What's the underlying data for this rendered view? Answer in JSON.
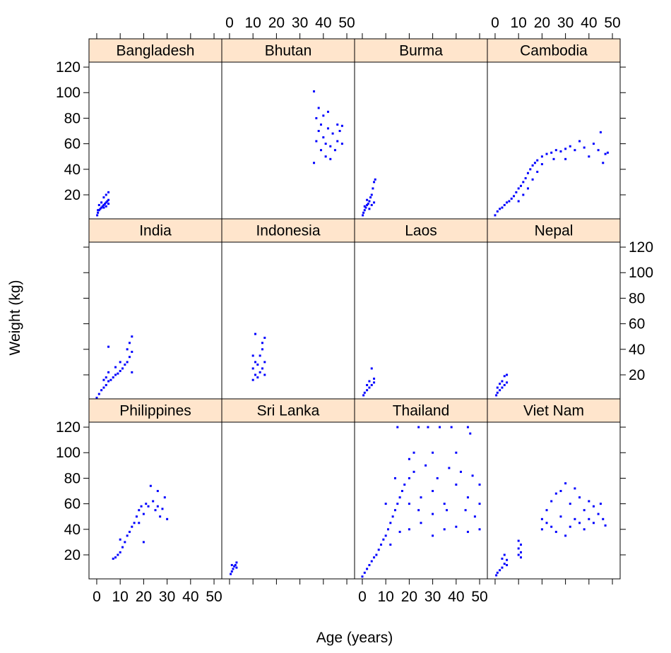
{
  "chart_data": {
    "type": "scatter",
    "xlabel": "Age (years)",
    "ylabel": "Weight (kg)",
    "color": "#0000ff",
    "xlim": [
      -3.3,
      53.3
    ],
    "ylim": [
      1.2,
      123.9
    ],
    "xticks": [
      0,
      10,
      20,
      30,
      40,
      50
    ],
    "yticks": [
      20,
      40,
      60,
      80,
      100,
      120
    ],
    "panels": [
      {
        "name": "Bangladesh",
        "x": [
          0.2,
          0.5,
          1,
          1.5,
          2,
          2.5,
          3,
          3.5,
          4,
          4.5,
          5,
          1,
          2,
          3,
          4,
          5,
          4,
          5,
          0.5,
          3
        ],
        "y": [
          4,
          6,
          8,
          9,
          10,
          11,
          12,
          13,
          14,
          15,
          16,
          12,
          14,
          18,
          20,
          22,
          11,
          13,
          8,
          10
        ]
      },
      {
        "name": "Bhutan",
        "x": [
          36,
          36,
          37,
          37,
          38,
          38,
          39,
          39,
          40,
          40,
          41,
          41,
          42,
          42,
          43,
          43,
          44,
          45,
          46,
          46,
          47,
          48,
          48
        ],
        "y": [
          101,
          45,
          80,
          62,
          88,
          70,
          75,
          55,
          82,
          65,
          60,
          50,
          72,
          85,
          58,
          48,
          68,
          55,
          62,
          75,
          70,
          60,
          74
        ]
      },
      {
        "name": "Burma",
        "x": [
          0.2,
          0.5,
          1,
          1.5,
          2,
          2.5,
          3,
          3.5,
          4,
          4.5,
          5,
          5.5,
          4,
          5,
          3,
          2,
          1
        ],
        "y": [
          4,
          6,
          8,
          10,
          12,
          13,
          15,
          18,
          20,
          25,
          30,
          32,
          12,
          14,
          9,
          16,
          11
        ]
      },
      {
        "name": "Cambodia",
        "x": [
          0,
          1,
          2,
          3,
          4,
          5,
          6,
          7,
          8,
          9,
          10,
          11,
          12,
          13,
          14,
          15,
          16,
          17,
          18,
          20,
          22,
          24,
          26,
          28,
          30,
          32,
          34,
          36,
          38,
          40,
          42,
          44,
          45,
          46,
          47,
          48,
          10,
          12,
          14,
          16,
          18,
          20,
          25,
          30
        ],
        "y": [
          4,
          7,
          9,
          10,
          12,
          14,
          15,
          17,
          19,
          22,
          25,
          27,
          30,
          33,
          37,
          40,
          43,
          45,
          47,
          50,
          52,
          53,
          55,
          54,
          56,
          58,
          55,
          62,
          57,
          50,
          60,
          55,
          69,
          45,
          52,
          53,
          15,
          20,
          25,
          32,
          38,
          44,
          48,
          48
        ]
      },
      {
        "name": "India",
        "x": [
          0,
          1,
          2,
          3,
          4,
          5,
          5,
          5,
          4,
          3,
          6,
          7,
          8,
          9,
          10,
          11,
          12,
          13,
          14,
          15,
          15,
          14,
          13,
          10,
          8,
          15
        ],
        "y": [
          2,
          5,
          8,
          10,
          12,
          15,
          22,
          42,
          18,
          16,
          16,
          18,
          20,
          21,
          23,
          25,
          28,
          30,
          34,
          38,
          50,
          45,
          40,
          30,
          26,
          22
        ]
      },
      {
        "name": "Indonesia",
        "x": [
          10,
          10,
          10,
          11,
          11,
          11,
          12,
          12,
          13,
          13,
          14,
          14,
          15,
          15,
          15,
          14
        ],
        "y": [
          16,
          25,
          35,
          20,
          30,
          52,
          18,
          28,
          22,
          35,
          25,
          40,
          30,
          49,
          20,
          45
        ]
      },
      {
        "name": "Laos",
        "x": [
          0.5,
          1,
          2,
          3,
          4,
          5,
          4,
          3,
          5,
          2
        ],
        "y": [
          4,
          6,
          8,
          10,
          12,
          14,
          25,
          15,
          17,
          12
        ]
      },
      {
        "name": "Nepal",
        "x": [
          0.5,
          1,
          2,
          3,
          4,
          5,
          4,
          5,
          3,
          2,
          1
        ],
        "y": [
          4,
          6,
          8,
          10,
          12,
          14,
          19,
          20,
          15,
          13,
          10
        ]
      },
      {
        "name": "Philippines",
        "x": [
          7,
          8,
          9,
          10,
          11,
          12,
          13,
          14,
          15,
          16,
          17,
          18,
          19,
          20,
          21,
          22,
          23,
          24,
          25,
          26,
          27,
          28,
          29,
          30,
          20,
          10,
          18,
          26
        ],
        "y": [
          17,
          18,
          20,
          22,
          26,
          30,
          35,
          38,
          42,
          45,
          50,
          55,
          58,
          52,
          60,
          58,
          74,
          62,
          55,
          58,
          50,
          56,
          65,
          48,
          30,
          32,
          45,
          70
        ]
      },
      {
        "name": "Sri Lanka",
        "x": [
          0.5,
          1,
          1.5,
          2,
          2.5,
          3,
          1,
          3
        ],
        "y": [
          5,
          7,
          9,
          11,
          12,
          14,
          12,
          10
        ]
      },
      {
        "name": "Thailand",
        "x": [
          0,
          1,
          2,
          3,
          4,
          5,
          6,
          7,
          8,
          9,
          10,
          11,
          12,
          13,
          14,
          15,
          16,
          17,
          18,
          20,
          22,
          24,
          15,
          28,
          33,
          38,
          45,
          20,
          25,
          30,
          35,
          40,
          45,
          50,
          20,
          25,
          30,
          35,
          40,
          45,
          50,
          22,
          27,
          32,
          37,
          42,
          47,
          50,
          12,
          16,
          24,
          30,
          36,
          44,
          48,
          20,
          30,
          40,
          46,
          10,
          14
        ],
        "y": [
          3,
          6,
          9,
          12,
          15,
          18,
          20,
          24,
          28,
          32,
          35,
          40,
          45,
          50,
          55,
          60,
          65,
          70,
          75,
          80,
          100,
          120,
          120,
          120,
          120,
          120,
          120,
          40,
          45,
          35,
          40,
          42,
          38,
          40,
          60,
          65,
          70,
          60,
          75,
          65,
          60,
          85,
          90,
          80,
          88,
          85,
          82,
          75,
          28,
          38,
          55,
          52,
          55,
          55,
          50,
          95,
          100,
          100,
          115,
          60,
          80
        ]
      },
      {
        "name": "Viet Nam",
        "x": [
          0.5,
          1,
          2,
          3,
          4,
          5,
          3,
          4,
          5,
          10,
          10,
          10,
          11,
          11,
          11,
          20,
          20,
          22,
          22,
          24,
          24,
          26,
          26,
          28,
          28,
          30,
          30,
          32,
          32,
          34,
          34,
          36,
          36,
          38,
          38,
          40,
          40,
          42,
          42,
          44,
          45,
          46,
          47
        ],
        "y": [
          4,
          6,
          8,
          10,
          13,
          16,
          17,
          20,
          12,
          20,
          25,
          31,
          18,
          28,
          22,
          48,
          40,
          55,
          45,
          62,
          42,
          68,
          38,
          70,
          50,
          76,
          35,
          60,
          42,
          72,
          48,
          65,
          45,
          55,
          40,
          62,
          48,
          58,
          45,
          52,
          60,
          48,
          43
        ]
      }
    ]
  }
}
